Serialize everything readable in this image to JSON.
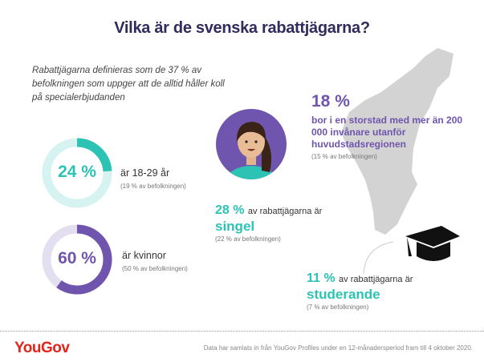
{
  "title": "Vilka är de svenska rabattjägarna?",
  "intro": "Rabattjägarna definieras som de 37 % av befolkningen som uppger att de alltid håller koll på specialerbjudanden",
  "age": {
    "value": "24 %",
    "fraction": 0.24,
    "label": "är 18-29 år",
    "sub": "(19 % av befolkningen)"
  },
  "women": {
    "value": "60 %",
    "fraction": 0.6,
    "label": "är kvinnor",
    "sub": "(50 % av befolkningen)"
  },
  "city": {
    "value": "18 %",
    "label": "bor i en storstad med mer än 200 000 invånare utanför huvudstadsregionen",
    "sub": "(15 % av befolkningen)"
  },
  "single": {
    "value": "28 %",
    "text": "av rabattjägarna är",
    "label": "singel",
    "sub": "(22 % av befolkningen)"
  },
  "student": {
    "value": "11 %",
    "text": "av rabattjägarna är",
    "label": "studerande",
    "sub": "(7 % av befolkningen)"
  },
  "footer": {
    "logo": "YouGov",
    "note": "Data har samlats in från YouGov Profiles under en 12-månadersperiod fram till 4 oktober 2020."
  },
  "colors": {
    "teal": "#2cc3b5",
    "purple": "#6f55ad",
    "navy": "#2f2b5c",
    "brand": "#e0251b"
  }
}
